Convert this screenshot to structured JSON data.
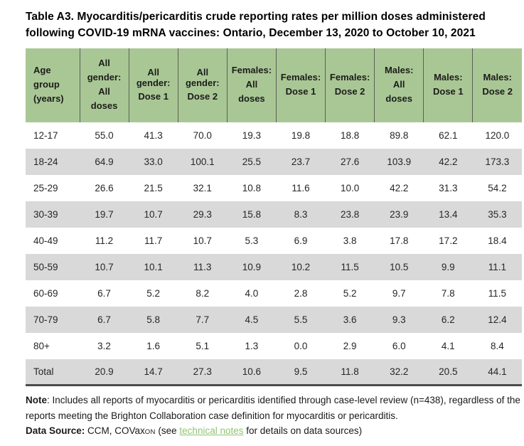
{
  "title": {
    "line1": "Table A3. Myocarditis/pericarditis crude reporting rates per million doses administered",
    "line2": "following COVID-19 mRNA vaccines: Ontario, December 13, 2020 to October 10, 2021"
  },
  "table": {
    "header": [
      {
        "lines": [
          "Age",
          "group",
          "(years)"
        ]
      },
      {
        "lines": [
          "All",
          "gender:",
          "All",
          "doses"
        ]
      },
      {
        "lines": [
          "All gender:",
          "Dose 1"
        ]
      },
      {
        "lines": [
          "All gender:",
          "Dose 2"
        ]
      },
      {
        "lines": [
          "Females:",
          "All",
          "doses"
        ]
      },
      {
        "lines": [
          "Females:",
          "Dose 1"
        ]
      },
      {
        "lines": [
          "Females:",
          "Dose 2"
        ]
      },
      {
        "lines": [
          "Males:",
          "All",
          "doses"
        ]
      },
      {
        "lines": [
          "Males:",
          "Dose 1"
        ]
      },
      {
        "lines": [
          "Males:",
          "Dose 2"
        ]
      }
    ],
    "rows": [
      {
        "age": "12-17",
        "values": [
          "55.0",
          "41.3",
          "70.0",
          "19.3",
          "19.8",
          "18.8",
          "89.8",
          "62.1",
          "120.0"
        ]
      },
      {
        "age": "18-24",
        "values": [
          "64.9",
          "33.0",
          "100.1",
          "25.5",
          "23.7",
          "27.6",
          "103.9",
          "42.2",
          "173.3"
        ]
      },
      {
        "age": "25-29",
        "values": [
          "26.6",
          "21.5",
          "32.1",
          "10.8",
          "11.6",
          "10.0",
          "42.2",
          "31.3",
          "54.2"
        ]
      },
      {
        "age": "30-39",
        "values": [
          "19.7",
          "10.7",
          "29.3",
          "15.8",
          "8.3",
          "23.8",
          "23.9",
          "13.4",
          "35.3"
        ]
      },
      {
        "age": "40-49",
        "values": [
          "11.2",
          "11.7",
          "10.7",
          "5.3",
          "6.9",
          "3.8",
          "17.8",
          "17.2",
          "18.4"
        ]
      },
      {
        "age": "50-59",
        "values": [
          "10.7",
          "10.1",
          "11.3",
          "10.9",
          "10.2",
          "11.5",
          "10.5",
          "9.9",
          "11.1"
        ]
      },
      {
        "age": "60-69",
        "values": [
          "6.7",
          "5.2",
          "8.2",
          "4.0",
          "2.8",
          "5.2",
          "9.7",
          "7.8",
          "11.5"
        ]
      },
      {
        "age": "70-79",
        "values": [
          "6.7",
          "5.8",
          "7.7",
          "4.5",
          "5.5",
          "3.6",
          "9.3",
          "6.2",
          "12.4"
        ]
      },
      {
        "age": "80+",
        "values": [
          "3.2",
          "1.6",
          "5.1",
          "1.3",
          "0.0",
          "2.9",
          "6.0",
          "4.1",
          "8.4"
        ]
      },
      {
        "age": "Total",
        "values": [
          "20.9",
          "14.7",
          "27.3",
          "10.6",
          "9.5",
          "11.8",
          "32.2",
          "20.5",
          "44.1"
        ]
      }
    ]
  },
  "notes": {
    "note_label": "Note",
    "note_text": ": Includes all reports of myocarditis or pericarditis identified through case-level review (n=438), regardless of the reports meeting the Brighton Collaboration case definition for myocarditis or pericarditis.",
    "source_label": "Data Source:",
    "source_pre": " CCM, COVax",
    "covax_suffix": "ON",
    "source_mid": " (see ",
    "link_text": "technical notes",
    "source_post": " for details on data sources)"
  },
  "colors": {
    "header_green": "#a9c794",
    "shaded_row_gray": "#d9d9d9",
    "bottom_border": "#4c4c4c",
    "link_green": "#90c470"
  }
}
